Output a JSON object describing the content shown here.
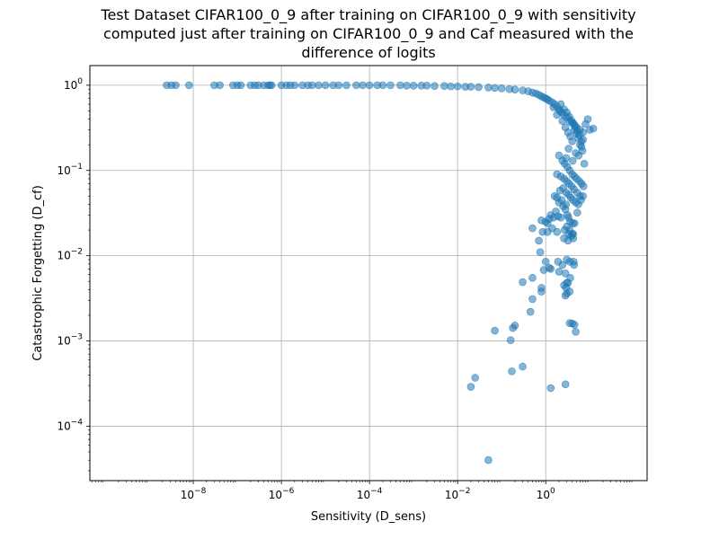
{
  "chart_data": {
    "type": "scatter",
    "title": [
      "Test Dataset CIFAR100_0_9 after training on CIFAR100_0_9 with sensitivity",
      "computed just after training on CIFAR100_0_9 and Caf measured with the",
      "difference of logits"
    ],
    "xlabel": "Sensitivity (D_sens)",
    "ylabel": "Catastrophic Forgetting (D_cf)",
    "xscale": "log",
    "yscale": "log",
    "xlim": [
      4.5e-11,
      200
    ],
    "ylim": [
      2.3e-05,
      1.7
    ],
    "grid": true,
    "x_ticks": [
      {
        "value": 1e-08,
        "label": "10^-8",
        "base": "10",
        "exp": "−8"
      },
      {
        "value": 1e-06,
        "label": "10^-6",
        "base": "10",
        "exp": "−6"
      },
      {
        "value": 0.0001,
        "label": "10^-4",
        "base": "10",
        "exp": "−4"
      },
      {
        "value": 0.01,
        "label": "10^-2",
        "base": "10",
        "exp": "−2"
      },
      {
        "value": 1,
        "label": "10^0",
        "base": "10",
        "exp": "0"
      }
    ],
    "y_ticks": [
      {
        "value": 0.0001,
        "label": "10^-4",
        "base": "10",
        "exp": "−4"
      },
      {
        "value": 0.001,
        "label": "10^-3",
        "base": "10",
        "exp": "−3"
      },
      {
        "value": 0.01,
        "label": "10^-2",
        "base": "10",
        "exp": "−2"
      },
      {
        "value": 0.1,
        "label": "10^-1",
        "base": "10",
        "exp": "−1"
      },
      {
        "value": 1,
        "label": "10^0",
        "base": "10",
        "exp": "0"
      }
    ],
    "marker_color": "#1f77b4",
    "marker_alpha": 0.55,
    "series": [
      {
        "x": [
          2.5e-09,
          3.2e-09,
          4e-09,
          8e-09,
          3e-08,
          4e-08,
          8e-08,
          1e-07,
          1.2e-07,
          2e-07,
          2.5e-07,
          3e-07,
          4e-07,
          5e-07,
          5.5e-07,
          6e-07,
          1e-06,
          1.3e-06,
          1.6e-06,
          2e-06,
          3e-06,
          4e-06,
          5e-06,
          7e-06,
          1e-05,
          1.5e-05,
          2e-05,
          3e-05,
          5e-05,
          7e-05,
          0.0001,
          0.00015,
          0.0002,
          0.0003,
          0.0005,
          0.0007,
          0.001,
          0.0015,
          0.002,
          0.003,
          0.005,
          0.007,
          0.01,
          0.015,
          0.02,
          0.03,
          0.05,
          0.07,
          0.1,
          0.15,
          0.2,
          0.3,
          0.4,
          0.5,
          0.6,
          0.7,
          0.8,
          0.9,
          1.0,
          1.1,
          1.2,
          1.4,
          1.6,
          1.8,
          2.0,
          2.3,
          2.6,
          3.0,
          3.5,
          4.0,
          4.5,
          5.0,
          6.0,
          7.0,
          8.0,
          9.0,
          10.0
        ],
        "y": [
          1.0,
          1.0,
          1.0,
          1.0,
          1.0,
          1.0,
          1.0,
          1.0,
          1.0,
          1.0,
          1.0,
          1.0,
          1.0,
          1.0,
          1.0,
          1.0,
          1.0,
          1.0,
          1.0,
          1.0,
          1.0,
          1.0,
          1.0,
          1.0,
          1.0,
          1.0,
          1.0,
          1.0,
          1.0,
          1.0,
          1.0,
          1.0,
          1.0,
          1.0,
          1.0,
          0.99,
          0.99,
          0.99,
          0.99,
          0.98,
          0.98,
          0.97,
          0.97,
          0.96,
          0.96,
          0.95,
          0.94,
          0.93,
          0.92,
          0.9,
          0.89,
          0.87,
          0.85,
          0.82,
          0.8,
          0.77,
          0.74,
          0.72,
          0.7,
          0.68,
          0.66,
          0.63,
          0.6,
          0.56,
          0.52,
          0.48,
          0.45,
          0.42,
          0.38,
          0.36,
          0.34,
          0.32,
          0.3,
          0.28,
          0.35,
          0.4,
          0.3
        ]
      },
      {
        "x": [
          1.5,
          1.8,
          2.1,
          2.4,
          2.8,
          3.2,
          3.6,
          4.0,
          4.5,
          5.0,
          5.5,
          6.0,
          6.5,
          7.0,
          2.2,
          2.6,
          3.0,
          3.4,
          3.8,
          4.2,
          4.6,
          5.2,
          5.8,
          6.4,
          3.3,
          4.8,
          5.6,
          2.9,
          4.1,
          6.8,
          7.5,
          12.0
        ],
        "y": [
          0.55,
          0.45,
          0.5,
          0.38,
          0.32,
          0.28,
          0.25,
          0.22,
          0.3,
          0.27,
          0.24,
          0.2,
          0.19,
          0.23,
          0.6,
          0.52,
          0.48,
          0.43,
          0.39,
          0.36,
          0.33,
          0.29,
          0.26,
          0.22,
          0.18,
          0.16,
          0.15,
          0.14,
          0.13,
          0.17,
          0.12,
          0.31
        ]
      },
      {
        "x": [
          2.0,
          2.4,
          2.7,
          3.1,
          3.5,
          4.0,
          4.5,
          5.0,
          5.8,
          6.5,
          7.2,
          1.8,
          2.2,
          2.6,
          3.0,
          3.4,
          3.9,
          4.4,
          5.2,
          6.0,
          7.0,
          2.1,
          2.5,
          2.9,
          3.3,
          3.7,
          4.2,
          4.8,
          5.5,
          6.3
        ],
        "y": [
          0.15,
          0.13,
          0.12,
          0.11,
          0.1,
          0.09,
          0.085,
          0.08,
          0.075,
          0.07,
          0.065,
          0.09,
          0.085,
          0.08,
          0.075,
          0.07,
          0.065,
          0.06,
          0.055,
          0.05,
          0.05,
          0.058,
          0.062,
          0.055,
          0.052,
          0.048,
          0.045,
          0.042,
          0.04,
          0.045
        ]
      },
      {
        "x": [
          2.8,
          3.1,
          3.3,
          3.6,
          4.1,
          4.5,
          5.2,
          2.5,
          2.0,
          2.3,
          2.9,
          1.6,
          1.8,
          1.3,
          1.5,
          1.9,
          1.0,
          1.1,
          0.8,
          1.2,
          1.7,
          2.2,
          2.7,
          3.3,
          3.8,
          4.2,
          3.0,
          3.5,
          4.0
        ],
        "y": [
          0.035,
          0.03,
          0.028,
          0.025,
          0.024,
          0.024,
          0.032,
          0.038,
          0.042,
          0.045,
          0.04,
          0.05,
          0.048,
          0.03,
          0.028,
          0.029,
          0.025,
          0.024,
          0.026,
          0.027,
          0.033,
          0.028,
          0.02,
          0.018,
          0.017,
          0.016,
          0.022,
          0.02,
          0.018
        ]
      },
      {
        "x": [
          0.5,
          0.7,
          0.85,
          1.1,
          1.4,
          1.8,
          2.6,
          3.2,
          4.2,
          0.75,
          1.0,
          1.3,
          1.9,
          2.4,
          3.0,
          3.5,
          4.3,
          0.9,
          1.2,
          2.0,
          2.8,
          3.6,
          4.4
        ],
        "y": [
          0.021,
          0.015,
          0.019,
          0.019,
          0.021,
          0.019,
          0.016,
          0.015,
          0.018,
          0.011,
          0.0085,
          0.007,
          0.0085,
          0.0078,
          0.009,
          0.0085,
          0.0085,
          0.0068,
          0.0072,
          0.0065,
          0.0062,
          0.0055,
          0.0078
        ]
      },
      {
        "x": [
          0.3,
          0.5,
          0.8,
          0.5,
          0.8,
          2.6,
          3.0,
          3.2,
          3.5,
          2.9,
          2.8,
          3.0,
          0.45,
          0.16,
          0.18,
          0.2,
          0.07,
          3.5,
          4.0,
          4.5,
          4.8,
          0.17,
          0.3,
          0.025,
          0.02,
          0.05,
          1.3,
          2.8
        ],
        "y": [
          0.0049,
          0.0055,
          0.0042,
          0.0031,
          0.0038,
          0.0045,
          0.0048,
          0.0048,
          0.0038,
          0.0042,
          0.0034,
          0.0036,
          0.0022,
          0.00102,
          0.00142,
          0.00152,
          0.00132,
          0.00162,
          0.0016,
          0.00155,
          0.00128,
          0.00044,
          0.0005,
          0.00037,
          0.00029,
          4e-05,
          0.00028,
          0.00031
        ]
      }
    ]
  }
}
